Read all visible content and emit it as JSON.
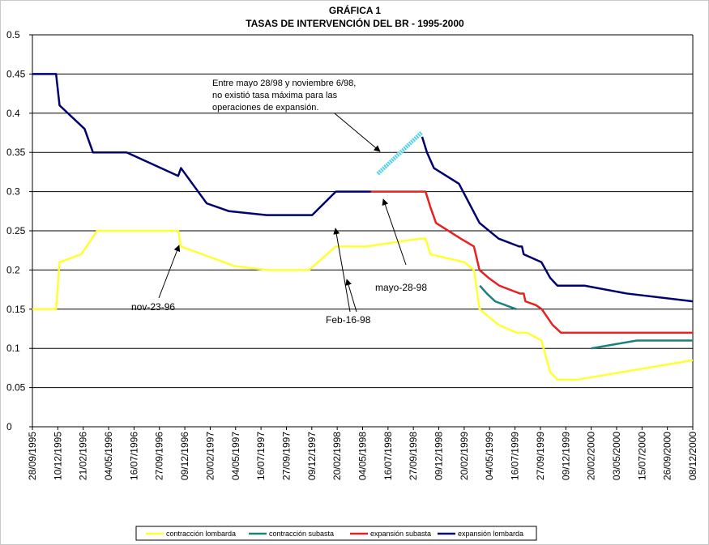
{
  "chart_data": {
    "type": "line",
    "title": [
      "GRÁFICA 1",
      "TASAS DE INTERVENCIÓN DEL BR - 1995-2000"
    ],
    "ylim": [
      0,
      0.5
    ],
    "y_ticks": [
      "0",
      "0.05",
      "0.1",
      "0.15",
      "0.2",
      "0.25",
      "0.3",
      "0.35",
      "0.4",
      "0.45",
      "0.5"
    ],
    "x_range": [
      "1995-09-28",
      "2000-12-08"
    ],
    "x_tick_labels": [
      "28/09/1995",
      "10/12/1995",
      "21/02/1996",
      "04/05/1996",
      "16/07/1996",
      "27/09/1996",
      "09/12/1996",
      "20/02/1997",
      "04/05/1997",
      "16/07/1997",
      "27/09/1997",
      "09/12/1997",
      "20/02/1998",
      "04/05/1998",
      "16/07/1998",
      "27/09/1998",
      "09/12/1998",
      "20/02/1999",
      "04/05/1999",
      "16/07/1999",
      "27/09/1999",
      "09/12/1999",
      "20/02/2000",
      "03/05/2000",
      "15/07/2000",
      "26/09/2000",
      "08/12/2000"
    ],
    "series": [
      {
        "name": "contracción lombarda",
        "color": "#ffff33",
        "points": [
          [
            "1995-09-28",
            0.15
          ],
          [
            "1995-12-05",
            0.15
          ],
          [
            "1995-12-15",
            0.21
          ],
          [
            "1996-02-15",
            0.22
          ],
          [
            "1996-04-01",
            0.25
          ],
          [
            "1996-11-20",
            0.25
          ],
          [
            "1996-11-28",
            0.23
          ],
          [
            "1997-05-01",
            0.205
          ],
          [
            "1997-08-01",
            0.2
          ],
          [
            "1997-12-01",
            0.2
          ],
          [
            "1998-02-16",
            0.23
          ],
          [
            "1998-05-15",
            0.23
          ],
          [
            "1998-10-15",
            0.24
          ],
          [
            "1998-11-01",
            0.24
          ],
          [
            "1998-11-15",
            0.22
          ],
          [
            "1999-02-20",
            0.21
          ],
          [
            "1999-03-20",
            0.2
          ],
          [
            "1999-04-05",
            0.15
          ],
          [
            "1999-05-30",
            0.13
          ],
          [
            "1999-07-20",
            0.12
          ],
          [
            "1999-08-20",
            0.12
          ],
          [
            "1999-09-30",
            0.11
          ],
          [
            "1999-10-25",
            0.07
          ],
          [
            "1999-11-15",
            0.06
          ],
          [
            "2000-01-10",
            0.06
          ],
          [
            "2000-12-08",
            0.085
          ]
        ]
      },
      {
        "name": "contracción subasta",
        "color": "#1a8080",
        "segments": [
          [
            [
              "1999-04-06",
              0.18
            ],
            [
              "1999-04-26",
              0.17
            ],
            [
              "1999-05-20",
              0.16
            ],
            [
              "1999-07-20",
              0.15
            ]
          ],
          [
            [
              "2000-02-20",
              0.1
            ],
            [
              "2000-06-30",
              0.11
            ],
            [
              "2000-12-08",
              0.11
            ]
          ]
        ]
      },
      {
        "name": "expansión subasta",
        "color": "#e82020",
        "points": [
          [
            "1998-05-28",
            0.3
          ],
          [
            "1998-11-01",
            0.3
          ],
          [
            "1998-11-15",
            0.28
          ],
          [
            "1998-12-01",
            0.26
          ],
          [
            "1999-02-10",
            0.24
          ],
          [
            "1999-03-20",
            0.23
          ],
          [
            "1999-04-05",
            0.2
          ],
          [
            "1999-05-01",
            0.19
          ],
          [
            "1999-06-01",
            0.18
          ],
          [
            "1999-07-30",
            0.17
          ],
          [
            "1999-08-10",
            0.17
          ],
          [
            "1999-08-15",
            0.16
          ],
          [
            "1999-09-15",
            0.155
          ],
          [
            "1999-10-01",
            0.15
          ],
          [
            "1999-11-01",
            0.13
          ],
          [
            "1999-11-25",
            0.12
          ],
          [
            "2000-07-01",
            0.12
          ],
          [
            "2000-12-08",
            0.12
          ]
        ]
      },
      {
        "name": "expansión lombarda",
        "color": "#00006e",
        "segments": [
          [
            [
              "1995-09-28",
              0.45
            ],
            [
              "1995-12-05",
              0.45
            ],
            [
              "1995-12-15",
              0.41
            ],
            [
              "1996-02-25",
              0.38
            ],
            [
              "1996-03-20",
              0.35
            ],
            [
              "1996-06-25",
              0.35
            ],
            [
              "1996-11-20",
              0.32
            ],
            [
              "1996-11-28",
              0.33
            ],
            [
              "1997-02-10",
              0.285
            ],
            [
              "1997-04-15",
              0.275
            ],
            [
              "1997-08-01",
              0.27
            ],
            [
              "1997-12-10",
              0.27
            ],
            [
              "1998-02-16",
              0.3
            ],
            [
              "1998-05-28",
              0.3
            ]
          ],
          [
            [
              "1998-10-22",
              0.37
            ],
            [
              "1998-11-05",
              0.35
            ],
            [
              "1998-11-25",
              0.33
            ],
            [
              "1999-02-05",
              0.31
            ],
            [
              "1999-04-05",
              0.26
            ],
            [
              "1999-05-30",
              0.24
            ],
            [
              "1999-07-28",
              0.23
            ],
            [
              "1999-08-05",
              0.23
            ],
            [
              "1999-08-10",
              0.22
            ],
            [
              "1999-09-30",
              0.21
            ],
            [
              "1999-10-25",
              0.19
            ],
            [
              "1999-11-15",
              0.18
            ],
            [
              "2000-02-01",
              0.18
            ],
            [
              "2000-06-01",
              0.17
            ],
            [
              "2000-12-08",
              0.16
            ]
          ]
        ]
      }
    ],
    "annotations": [
      {
        "name": "no-max-rate-note",
        "lines": [
          "Entre mayo 28/98 y noviembre 6/98,",
          "no existió tasa máxima para las",
          "operaciones de expansión."
        ],
        "hatched_segment": [
          [
            "1998-06-15",
            0.322
          ],
          [
            "1998-10-20",
            0.375
          ]
        ],
        "hatch_color": "#58d0e8"
      },
      {
        "name": "nov-23-96",
        "text": "nov-23-96"
      },
      {
        "name": "feb-16-98",
        "text": "Feb-16-98"
      },
      {
        "name": "mayo-28-98",
        "text": "mayo-28-98"
      }
    ],
    "legend": {
      "placement": "bottom",
      "entries": [
        {
          "label": "contracción lombarda",
          "color": "#ffff33"
        },
        {
          "label": "contracción subasta",
          "color": "#1a8080"
        },
        {
          "label": "expansión subasta",
          "color": "#e82020"
        },
        {
          "label": "expansión lombarda",
          "color": "#00006e"
        }
      ]
    }
  }
}
